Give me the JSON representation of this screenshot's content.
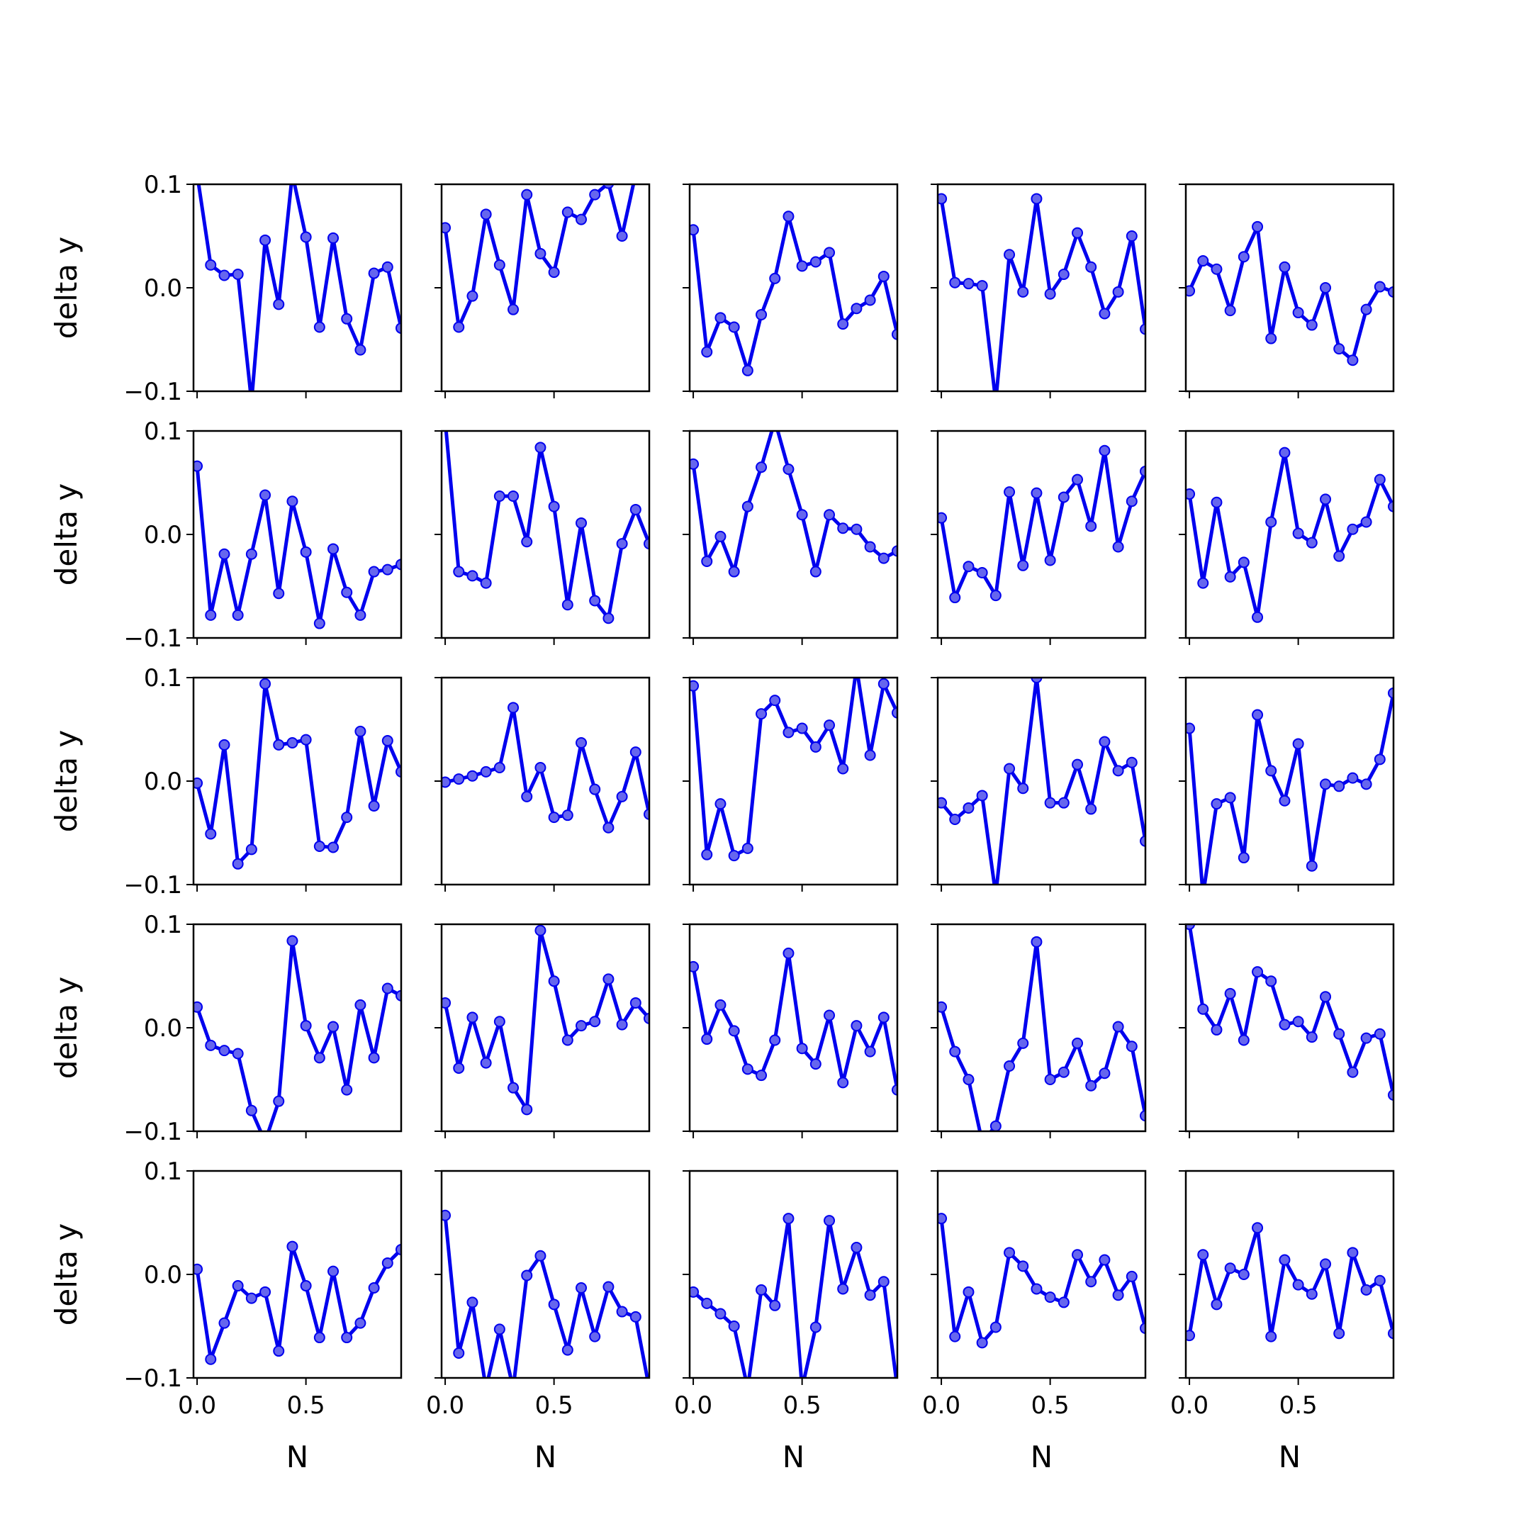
{
  "chart_data": {
    "type": "line",
    "layout": {
      "rows": 5,
      "cols": 5
    },
    "shared_y_axis_per_row": true,
    "shared_x_axis_per_column": true,
    "ylabel": "delta y",
    "xlabel": "N",
    "xlim": [
      -0.0165,
      0.9375
    ],
    "ylim": [
      -0.1,
      0.1
    ],
    "x_ticks": [
      0.0,
      0.5
    ],
    "x_tick_labels": [
      "0.0",
      "0.5"
    ],
    "y_ticks": [
      -0.1,
      0.0,
      0.1
    ],
    "y_tick_labels": [
      "−0.1",
      "0.0",
      "0.1"
    ],
    "x": [
      0.0,
      0.0625,
      0.125,
      0.1875,
      0.25,
      0.3125,
      0.375,
      0.4375,
      0.5,
      0.5625,
      0.625,
      0.6875,
      0.75,
      0.8125,
      0.875,
      0.9375
    ],
    "line_color": "#0000ee",
    "marker_color": "#6666ee",
    "grid": false,
    "panels": [
      {
        "row": 0,
        "col": 0,
        "values": [
          0.11,
          0.022,
          0.012,
          0.013,
          -0.11,
          0.046,
          -0.016,
          0.11,
          0.049,
          -0.038,
          0.048,
          -0.03,
          -0.06,
          0.014,
          0.02,
          -0.039
        ]
      },
      {
        "row": 0,
        "col": 1,
        "values": [
          0.058,
          -0.038,
          -0.008,
          0.071,
          0.022,
          -0.021,
          0.09,
          0.033,
          0.015,
          0.073,
          0.066,
          0.09,
          0.101,
          0.05,
          0.11,
          0.11
        ]
      },
      {
        "row": 0,
        "col": 2,
        "values": [
          0.056,
          -0.062,
          -0.029,
          -0.038,
          -0.08,
          -0.026,
          0.009,
          0.069,
          0.021,
          0.025,
          0.034,
          -0.035,
          -0.02,
          -0.012,
          0.011,
          -0.045
        ]
      },
      {
        "row": 0,
        "col": 3,
        "values": [
          0.086,
          0.005,
          0.004,
          0.002,
          -0.11,
          0.032,
          -0.004,
          0.086,
          -0.006,
          0.013,
          0.053,
          0.02,
          -0.025,
          -0.004,
          0.05,
          -0.04
        ]
      },
      {
        "row": 0,
        "col": 4,
        "values": [
          -0.003,
          0.026,
          0.018,
          -0.022,
          0.03,
          0.059,
          -0.049,
          0.02,
          -0.024,
          -0.036,
          0.0,
          -0.059,
          -0.07,
          -0.021,
          0.001,
          -0.004
        ]
      },
      {
        "row": 1,
        "col": 0,
        "values": [
          0.066,
          -0.078,
          -0.019,
          -0.078,
          -0.019,
          0.038,
          -0.057,
          0.032,
          -0.017,
          -0.086,
          -0.014,
          -0.056,
          -0.078,
          -0.036,
          -0.034,
          -0.029
        ]
      },
      {
        "row": 1,
        "col": 1,
        "values": [
          0.11,
          -0.036,
          -0.04,
          -0.047,
          0.037,
          0.037,
          -0.007,
          0.084,
          0.027,
          -0.068,
          0.011,
          -0.064,
          -0.081,
          -0.009,
          0.024,
          -0.009
        ]
      },
      {
        "row": 1,
        "col": 2,
        "values": [
          0.068,
          -0.026,
          -0.002,
          -0.036,
          0.027,
          0.065,
          0.11,
          0.063,
          0.019,
          -0.036,
          0.019,
          0.006,
          0.005,
          -0.012,
          -0.023,
          -0.016
        ]
      },
      {
        "row": 1,
        "col": 3,
        "values": [
          0.016,
          -0.061,
          -0.031,
          -0.037,
          -0.059,
          0.041,
          -0.03,
          0.04,
          -0.025,
          0.036,
          0.053,
          0.008,
          0.081,
          -0.012,
          0.032,
          0.061
        ]
      },
      {
        "row": 1,
        "col": 4,
        "values": [
          0.039,
          -0.047,
          0.031,
          -0.041,
          -0.027,
          -0.08,
          0.012,
          0.079,
          0.001,
          -0.008,
          0.034,
          -0.021,
          0.005,
          0.012,
          0.053,
          0.027
        ]
      },
      {
        "row": 2,
        "col": 0,
        "values": [
          -0.002,
          -0.051,
          0.035,
          -0.08,
          -0.066,
          0.094,
          0.035,
          0.037,
          0.04,
          -0.063,
          -0.064,
          -0.035,
          0.048,
          -0.024,
          0.039,
          0.009
        ]
      },
      {
        "row": 2,
        "col": 1,
        "values": [
          -0.001,
          0.002,
          0.005,
          0.009,
          0.013,
          0.071,
          -0.015,
          0.013,
          -0.035,
          -0.033,
          0.037,
          -0.008,
          -0.045,
          -0.015,
          0.028,
          -0.032
        ]
      },
      {
        "row": 2,
        "col": 2,
        "values": [
          0.092,
          -0.071,
          -0.022,
          -0.072,
          -0.065,
          0.065,
          0.078,
          0.047,
          0.051,
          0.033,
          0.054,
          0.012,
          0.11,
          0.025,
          0.094,
          0.066
        ]
      },
      {
        "row": 2,
        "col": 3,
        "values": [
          -0.021,
          -0.037,
          -0.026,
          -0.014,
          -0.11,
          0.012,
          -0.007,
          0.1,
          -0.021,
          -0.021,
          0.016,
          -0.027,
          0.038,
          0.01,
          0.018,
          -0.058
        ]
      },
      {
        "row": 2,
        "col": 4,
        "values": [
          0.051,
          -0.11,
          -0.022,
          -0.016,
          -0.074,
          0.064,
          0.01,
          -0.019,
          0.036,
          -0.082,
          -0.003,
          -0.005,
          0.003,
          -0.003,
          0.021,
          0.085
        ]
      },
      {
        "row": 3,
        "col": 0,
        "values": [
          0.02,
          -0.017,
          -0.022,
          -0.025,
          -0.08,
          -0.11,
          -0.071,
          0.084,
          0.002,
          -0.029,
          0.001,
          -0.06,
          0.022,
          -0.029,
          0.038,
          0.031
        ]
      },
      {
        "row": 3,
        "col": 1,
        "values": [
          0.024,
          -0.039,
          0.01,
          -0.034,
          0.006,
          -0.058,
          -0.079,
          0.094,
          0.045,
          -0.012,
          0.002,
          0.006,
          0.047,
          0.003,
          0.024,
          0.009
        ]
      },
      {
        "row": 3,
        "col": 2,
        "values": [
          0.059,
          -0.011,
          0.022,
          -0.003,
          -0.04,
          -0.046,
          -0.012,
          0.072,
          -0.02,
          -0.035,
          0.012,
          -0.053,
          0.002,
          -0.023,
          0.01,
          -0.06
        ]
      },
      {
        "row": 3,
        "col": 3,
        "values": [
          0.02,
          -0.023,
          -0.05,
          -0.11,
          -0.095,
          -0.037,
          -0.015,
          0.083,
          -0.05,
          -0.043,
          -0.015,
          -0.056,
          -0.044,
          0.001,
          -0.018,
          -0.085
        ]
      },
      {
        "row": 3,
        "col": 4,
        "values": [
          0.1,
          0.018,
          -0.002,
          0.033,
          -0.012,
          0.054,
          0.045,
          0.003,
          0.006,
          -0.009,
          0.03,
          -0.006,
          -0.043,
          -0.01,
          -0.006,
          -0.065
        ]
      },
      {
        "row": 4,
        "col": 0,
        "values": [
          0.005,
          -0.082,
          -0.047,
          -0.011,
          -0.023,
          -0.017,
          -0.074,
          0.027,
          -0.011,
          -0.061,
          0.003,
          -0.061,
          -0.047,
          -0.013,
          0.011,
          0.024
        ]
      },
      {
        "row": 4,
        "col": 1,
        "values": [
          0.057,
          -0.076,
          -0.027,
          -0.11,
          -0.053,
          -0.11,
          -0.001,
          0.018,
          -0.029,
          -0.073,
          -0.013,
          -0.06,
          -0.012,
          -0.036,
          -0.041,
          -0.11
        ]
      },
      {
        "row": 4,
        "col": 2,
        "values": [
          -0.017,
          -0.028,
          -0.038,
          -0.05,
          -0.11,
          -0.015,
          -0.03,
          0.054,
          -0.11,
          -0.051,
          0.052,
          -0.014,
          0.026,
          -0.02,
          -0.007,
          -0.11
        ]
      },
      {
        "row": 4,
        "col": 3,
        "values": [
          0.054,
          -0.06,
          -0.017,
          -0.066,
          -0.051,
          0.021,
          0.008,
          -0.014,
          -0.022,
          -0.027,
          0.019,
          -0.007,
          0.014,
          -0.02,
          -0.002,
          -0.052
        ]
      },
      {
        "row": 4,
        "col": 4,
        "values": [
          -0.059,
          0.019,
          -0.029,
          0.006,
          0.0,
          0.045,
          -0.06,
          0.014,
          -0.01,
          -0.019,
          0.01,
          -0.057,
          0.021,
          -0.015,
          -0.006,
          -0.057
        ]
      }
    ]
  }
}
